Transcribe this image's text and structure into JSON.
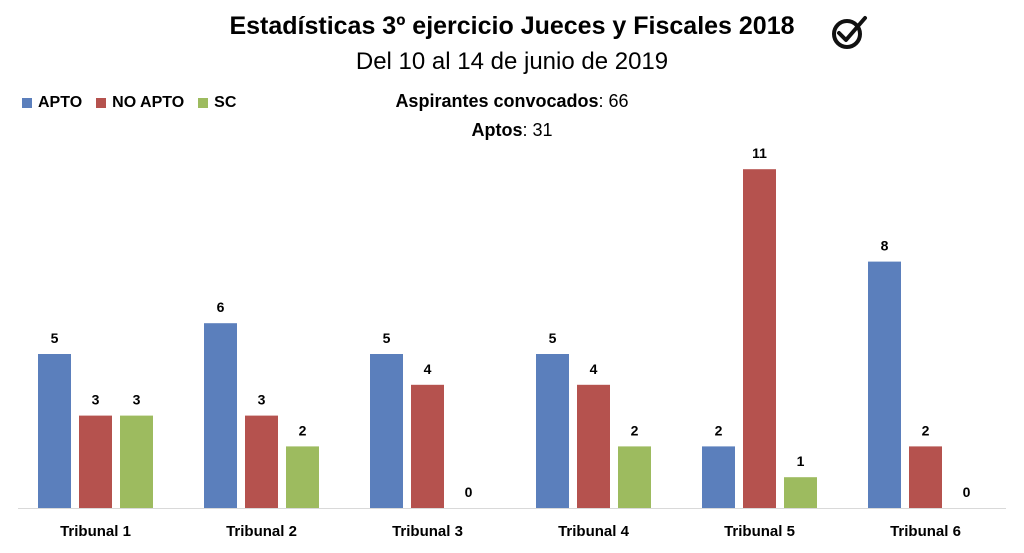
{
  "title": "Estadísticas 3º ejercicio Jueces y Fiscales 2018",
  "subtitle": "Del 10 al 14 de junio de 2019",
  "stats": [
    {
      "label": "Aspirantes convocados",
      "value": "66"
    },
    {
      "label": "Aptos",
      "value": "31"
    }
  ],
  "icons": {
    "header": "checkmark-circle-icon"
  },
  "chart_data": {
    "type": "bar",
    "categories": [
      "Tribunal 1",
      "Tribunal 2",
      "Tribunal 3",
      "Tribunal 4",
      "Tribunal 5",
      "Tribunal 6"
    ],
    "series": [
      {
        "name": "APTO",
        "color": "#5b7fbc",
        "values": [
          5,
          6,
          5,
          5,
          2,
          8
        ]
      },
      {
        "name": "NO APTO",
        "color": "#b5524e",
        "values": [
          3,
          3,
          4,
          4,
          11,
          2
        ]
      },
      {
        "name": "SC",
        "color": "#9dbb5f",
        "values": [
          3,
          2,
          0,
          2,
          1,
          0
        ]
      }
    ],
    "ylim": [
      0,
      11
    ],
    "legend_position": "top-left",
    "grid": false
  }
}
